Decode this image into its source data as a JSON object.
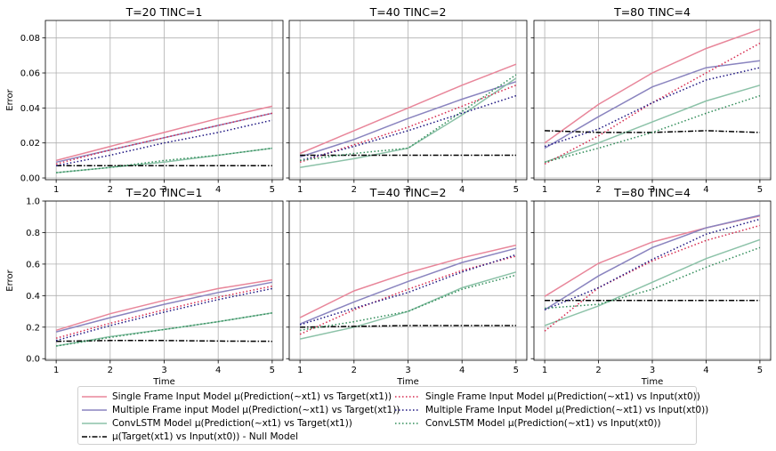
{
  "x_label": "Time",
  "y_label": "Error",
  "legend": [
    {
      "key": "sf_target",
      "label": "Single Frame Input Model μ(Prediction(~xt1) vs Target(xt1))",
      "color": "#e8869a",
      "dash": "solid"
    },
    {
      "key": "mf_target",
      "label": "Multiple Frame input Model μ(Prediction(~xt1) vs Target(xt1))",
      "color": "#8a84bf",
      "dash": "solid"
    },
    {
      "key": "cl_target",
      "label": "ConvLSTM Model μ(Prediction(~xt1) vs Target(xt1))",
      "color": "#8cc2a8",
      "dash": "solid"
    },
    {
      "key": "null",
      "label": "μ(Target(xt1) vs Input(xt0)) - Null Model",
      "color": "#000000",
      "dash": "dashdot"
    },
    {
      "key": "sf_input",
      "label": "Single Frame Input Model μ(Prediction(~xt1) vs Input(xt0))",
      "color": "#d6294d",
      "dash": "dotted"
    },
    {
      "key": "mf_input",
      "label": "Multiple Frame Input Model μ(Prediction(~xt1) vs Input(xt0))",
      "color": "#1c1380",
      "dash": "dotted"
    },
    {
      "key": "cl_input",
      "label": "ConvLSTM Model μ(Prediction(~xt1) vs Input(xt0))",
      "color": "#2e8b57",
      "dash": "dotted"
    }
  ],
  "chart_data": [
    {
      "type": "line",
      "title": "T=20 TINC=1",
      "ylabel": "Error",
      "xlabel": "",
      "ylim": [
        -0.001,
        0.09
      ],
      "yticks": [
        "0.00",
        "0.02",
        "0.04",
        "0.06",
        "0.08"
      ],
      "ytick_values": [
        0,
        0.02,
        0.04,
        0.06,
        0.08
      ],
      "x": [
        1,
        2,
        3,
        4,
        5
      ],
      "grid": true,
      "series": [
        {
          "key": "sf_target",
          "values": [
            0.01,
            0.018,
            0.026,
            0.034,
            0.041
          ]
        },
        {
          "key": "mf_target",
          "values": [
            0.009,
            0.016,
            0.023,
            0.03,
            0.037
          ]
        },
        {
          "key": "cl_target",
          "values": [
            0.003,
            0.006,
            0.009,
            0.013,
            0.017
          ]
        },
        {
          "key": "null",
          "values": [
            0.007,
            0.007,
            0.007,
            0.007,
            0.007
          ]
        },
        {
          "key": "sf_input",
          "values": [
            0.008,
            0.016,
            0.023,
            0.03,
            0.037
          ]
        },
        {
          "key": "mf_input",
          "values": [
            0.007,
            0.013,
            0.02,
            0.026,
            0.033
          ]
        },
        {
          "key": "cl_input",
          "values": [
            0.003,
            0.006,
            0.01,
            0.013,
            0.017
          ]
        }
      ]
    },
    {
      "type": "line",
      "title": "T=40 TINC=2",
      "ylabel": "",
      "xlabel": "",
      "ylim": [
        -0.001,
        0.09
      ],
      "yticks": [],
      "ytick_values": [
        0,
        0.02,
        0.04,
        0.06,
        0.08
      ],
      "x": [
        1,
        2,
        3,
        4,
        5
      ],
      "grid": true,
      "series": [
        {
          "key": "sf_target",
          "values": [
            0.014,
            0.027,
            0.04,
            0.053,
            0.065
          ]
        },
        {
          "key": "mf_target",
          "values": [
            0.012,
            0.022,
            0.034,
            0.045,
            0.055
          ]
        },
        {
          "key": "cl_target",
          "values": [
            0.006,
            0.011,
            0.017,
            0.036,
            0.057
          ]
        },
        {
          "key": "null",
          "values": [
            0.013,
            0.013,
            0.013,
            0.013,
            0.013
          ]
        },
        {
          "key": "sf_input",
          "values": [
            0.009,
            0.019,
            0.029,
            0.041,
            0.053
          ]
        },
        {
          "key": "mf_input",
          "values": [
            0.01,
            0.018,
            0.027,
            0.037,
            0.047
          ]
        },
        {
          "key": "cl_input",
          "values": [
            0.01,
            0.014,
            0.017,
            0.038,
            0.059
          ]
        }
      ]
    },
    {
      "type": "line",
      "title": "T=80 TINC=4",
      "ylabel": "",
      "xlabel": "",
      "ylim": [
        -0.001,
        0.09
      ],
      "yticks": [],
      "ytick_values": [
        0,
        0.02,
        0.04,
        0.06,
        0.08
      ],
      "x": [
        1,
        2,
        3,
        4,
        5
      ],
      "grid": true,
      "series": [
        {
          "key": "sf_target",
          "values": [
            0.02,
            0.042,
            0.06,
            0.074,
            0.085
          ]
        },
        {
          "key": "mf_target",
          "values": [
            0.017,
            0.035,
            0.052,
            0.063,
            0.067
          ]
        },
        {
          "key": "cl_target",
          "values": [
            0.009,
            0.02,
            0.032,
            0.044,
            0.053
          ]
        },
        {
          "key": "null",
          "values": [
            0.027,
            0.026,
            0.026,
            0.027,
            0.026
          ]
        },
        {
          "key": "sf_input",
          "values": [
            0.008,
            0.024,
            0.043,
            0.06,
            0.077
          ]
        },
        {
          "key": "mf_input",
          "values": [
            0.018,
            0.028,
            0.043,
            0.056,
            0.063
          ]
        },
        {
          "key": "cl_input",
          "values": [
            0.009,
            0.017,
            0.026,
            0.037,
            0.047
          ]
        }
      ]
    },
    {
      "type": "line",
      "title": "T=20 TINC=1",
      "ylabel": "Error",
      "xlabel": "Time",
      "ylim": [
        -0.01,
        1.0
      ],
      "yticks": [
        "0.0",
        "0.2",
        "0.4",
        "0.6",
        "0.8",
        "1.0"
      ],
      "ytick_values": [
        0,
        0.2,
        0.4,
        0.6,
        0.8,
        1.0
      ],
      "x": [
        1,
        2,
        3,
        4,
        5
      ],
      "grid": true,
      "series": [
        {
          "key": "sf_target",
          "values": [
            0.18,
            0.285,
            0.37,
            0.445,
            0.5
          ]
        },
        {
          "key": "mf_target",
          "values": [
            0.17,
            0.26,
            0.345,
            0.42,
            0.485
          ]
        },
        {
          "key": "cl_target",
          "values": [
            0.08,
            0.14,
            0.185,
            0.235,
            0.29
          ]
        },
        {
          "key": "null",
          "values": [
            0.11,
            0.115,
            0.115,
            0.112,
            0.11
          ]
        },
        {
          "key": "sf_input",
          "values": [
            0.13,
            0.225,
            0.31,
            0.39,
            0.46
          ]
        },
        {
          "key": "mf_input",
          "values": [
            0.115,
            0.21,
            0.295,
            0.375,
            0.445
          ]
        },
        {
          "key": "cl_input",
          "values": [
            0.08,
            0.135,
            0.185,
            0.235,
            0.29
          ]
        }
      ]
    },
    {
      "type": "line",
      "title": "T=40 TINC=2",
      "ylabel": "",
      "xlabel": "Time",
      "ylim": [
        -0.01,
        1.0
      ],
      "yticks": [],
      "ytick_values": [
        0,
        0.2,
        0.4,
        0.6,
        0.8,
        1.0
      ],
      "x": [
        1,
        2,
        3,
        4,
        5
      ],
      "grid": true,
      "series": [
        {
          "key": "sf_target",
          "values": [
            0.26,
            0.43,
            0.545,
            0.64,
            0.72
          ]
        },
        {
          "key": "mf_target",
          "values": [
            0.22,
            0.36,
            0.49,
            0.61,
            0.7
          ]
        },
        {
          "key": "cl_target",
          "values": [
            0.125,
            0.2,
            0.3,
            0.45,
            0.55
          ]
        },
        {
          "key": "null",
          "values": [
            0.2,
            0.205,
            0.21,
            0.21,
            0.21
          ]
        },
        {
          "key": "sf_input",
          "values": [
            0.155,
            0.31,
            0.44,
            0.56,
            0.65
          ]
        },
        {
          "key": "mf_input",
          "values": [
            0.215,
            0.32,
            0.42,
            0.55,
            0.66
          ]
        },
        {
          "key": "cl_input",
          "values": [
            0.18,
            0.235,
            0.3,
            0.44,
            0.53
          ]
        }
      ]
    },
    {
      "type": "line",
      "title": "T=80 TINC=4",
      "ylabel": "",
      "xlabel": "Time",
      "ylim": [
        -0.01,
        1.0
      ],
      "yticks": [],
      "ytick_values": [
        0,
        0.2,
        0.4,
        0.6,
        0.8,
        1.0
      ],
      "x": [
        1,
        2,
        3,
        4,
        5
      ],
      "grid": true,
      "series": [
        {
          "key": "sf_target",
          "values": [
            0.395,
            0.605,
            0.74,
            0.83,
            0.905
          ]
        },
        {
          "key": "mf_target",
          "values": [
            0.31,
            0.525,
            0.705,
            0.83,
            0.91
          ]
        },
        {
          "key": "cl_target",
          "values": [
            0.21,
            0.335,
            0.485,
            0.635,
            0.755
          ]
        },
        {
          "key": "null",
          "values": [
            0.37,
            0.37,
            0.37,
            0.37,
            0.37
          ]
        },
        {
          "key": "sf_input",
          "values": [
            0.175,
            0.45,
            0.62,
            0.75,
            0.845
          ]
        },
        {
          "key": "mf_input",
          "values": [
            0.31,
            0.45,
            0.63,
            0.79,
            0.885
          ]
        },
        {
          "key": "cl_input",
          "values": [
            0.32,
            0.345,
            0.44,
            0.58,
            0.705
          ]
        }
      ]
    }
  ]
}
